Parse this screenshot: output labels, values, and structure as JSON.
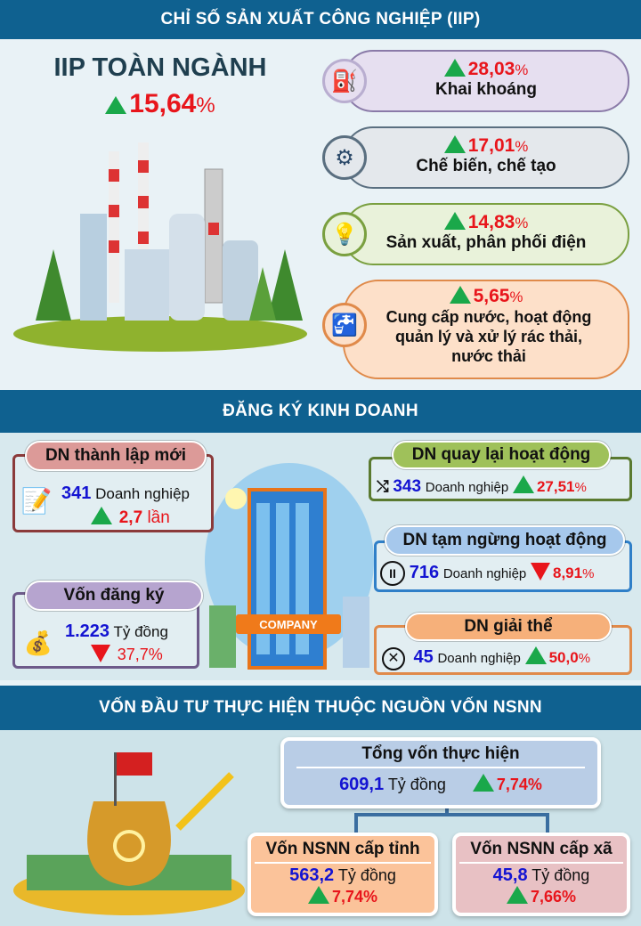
{
  "iip": {
    "header": "CHỈ SỐ SẢN XUẤT CÔNG NGHIỆP (IIP)",
    "total_label": "IIP TOÀN NGÀNH",
    "total_value": "15,64",
    "pct": "%",
    "items": [
      {
        "icon": "oil-pump-icon",
        "value": "28,03",
        "label": "Khai khoáng",
        "trend": "up"
      },
      {
        "icon": "wrench-gear-icon",
        "value": "17,01",
        "label": "Chế biến, chế tạo",
        "trend": "up"
      },
      {
        "icon": "lightbulb-icon",
        "value": "14,83",
        "label": "Sản xuất, phân phối điện",
        "trend": "up"
      },
      {
        "icon": "water-tap-icon",
        "value": "5,65",
        "label": "Cung cấp nước, hoạt động quản lý và xử lý rác thải, nước thải",
        "trend": "up"
      }
    ]
  },
  "business": {
    "header": "ĐĂNG KÝ KINH DOANH",
    "unit_dn": "Doanh nghiệp",
    "unit_money": "Tỷ đồng",
    "new": {
      "title": "DN thành lập mới",
      "value": "341",
      "change": "2,7",
      "change_unit": "lần",
      "trend": "up"
    },
    "capital": {
      "title": "Vốn đăng ký",
      "value": "1.223",
      "change": "37,7%",
      "trend": "down"
    },
    "returned": {
      "title": "DN quay lại hoạt động",
      "value": "343",
      "change": "27,51",
      "trend": "up"
    },
    "suspended": {
      "title": "DN tạm ngừng hoạt động",
      "value": "716",
      "change": "8,91",
      "trend": "down"
    },
    "dissolved": {
      "title": "DN giải thể",
      "value": "45",
      "change": "50,0",
      "trend": "up"
    },
    "building_sign": "COMPANY"
  },
  "investment": {
    "header": "VỐN ĐẦU TƯ THỰC HIỆN THUỘC NGUỒN VỐN NSNN",
    "unit": "Tỷ đồng",
    "total": {
      "title": "Tổng vốn thực hiện",
      "value": "609,1",
      "change": "7,74%"
    },
    "province": {
      "title": "Vốn NSNN cấp tỉnh",
      "value": "563,2",
      "change": "7,74%"
    },
    "commune": {
      "title": "Vốn NSNN cấp xã",
      "value": "45,8",
      "change": "7,66%"
    }
  },
  "colors": {
    "header": "#0f6190",
    "up": "#1aa84a",
    "down": "#e8151b",
    "value_blue": "#1414d2"
  }
}
